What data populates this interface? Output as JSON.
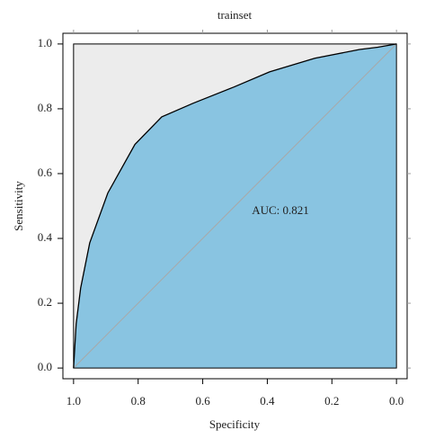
{
  "chart_data": {
    "type": "roc",
    "title": "trainset",
    "xlabel": "Specificity",
    "ylabel": "Sensitivity",
    "annotation": "AUC: 0.821",
    "x": [
      1.0,
      0.992,
      0.978,
      0.95,
      0.894,
      0.81,
      0.727,
      0.63,
      0.504,
      0.393,
      0.253,
      0.114,
      0.058,
      0.0
    ],
    "series": [
      {
        "color": "#000000",
        "fill": "#89c4e1",
        "values": [
          0.0,
          0.136,
          0.247,
          0.386,
          0.54,
          0.69,
          0.775,
          0.817,
          0.867,
          0.914,
          0.956,
          0.983,
          0.99,
          1.0
        ]
      }
    ],
    "xlim": [
      1.033,
      -0.033
    ],
    "ylim": [
      -0.033,
      1.033
    ],
    "xticks": [
      {
        "value": 1.0,
        "label": "1.0"
      },
      {
        "value": 0.8,
        "label": "0.8"
      },
      {
        "value": 0.6,
        "label": "0.6"
      },
      {
        "value": 0.4,
        "label": "0.4"
      },
      {
        "value": 0.2,
        "label": "0.2"
      },
      {
        "value": 0.0,
        "label": "0.0"
      }
    ],
    "yticks": [
      {
        "value": 0.0,
        "label": "0.0"
      },
      {
        "value": 0.2,
        "label": "0.2"
      },
      {
        "value": 0.4,
        "label": "0.4"
      },
      {
        "value": 0.6,
        "label": "0.6"
      },
      {
        "value": 0.8,
        "label": "0.8"
      },
      {
        "value": 1.0,
        "label": "1.0"
      }
    ],
    "background": "#ececec",
    "diagonal_color": "#a8a8a8"
  }
}
